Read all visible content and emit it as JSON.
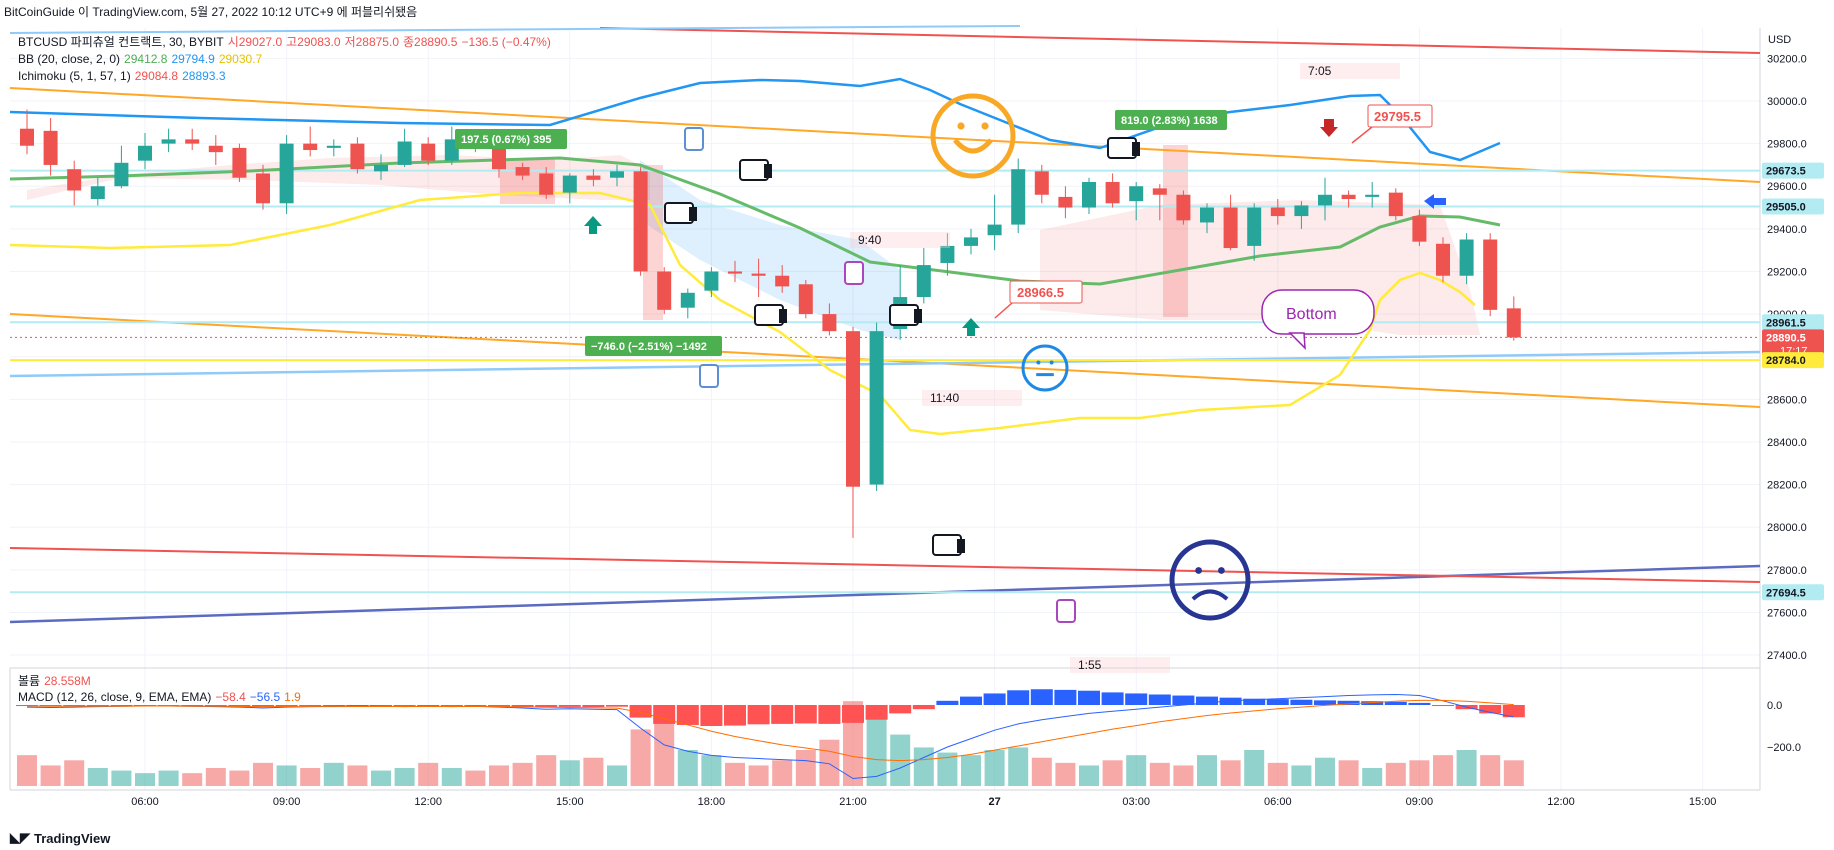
{
  "header": {
    "text": "BitCoinGuide 이 TradingView.com, 5월 27, 2022 10:12 UTC+9 에 퍼블리쉬됐음"
  },
  "legend": {
    "symbol": "BTCUSD 파피츄얼 컨트랙트, 30, BYBIT",
    "o_label": "시",
    "o": "29027.0",
    "h_label": "고",
    "h": "29083.0",
    "l_label": "저",
    "l": "28875.0",
    "c_label": "종",
    "c": "28890.5",
    "chg": "−136.5 (−0.47%)",
    "bb_label": "BB (20, close, 2, 0)",
    "bb_basis": "29412.8",
    "bb_upper": "29794.9",
    "bb_lower": "29030.7",
    "ichimoku_label": "Ichimoku (5, 1, 57, 1)",
    "ich_a": "29084.8",
    "ich_b": "28893.3",
    "volume_label": "볼륨",
    "volume": "28.558M",
    "macd_label": "MACD (12, 26, close, 9, EMA, EMA)",
    "macd_hist": "−58.4",
    "macd_line": "−56.5",
    "macd_signal": "1.9"
  },
  "currency": "USD",
  "price_axis": {
    "ticks": [
      "30200.0",
      "30000.0",
      "29800.0",
      "29600.0",
      "29400.0",
      "29200.0",
      "29000.0",
      "28800.0",
      "28600.0",
      "28400.0",
      "28200.0",
      "28000.0",
      "27800.0",
      "27600.0",
      "27400.0"
    ],
    "badges": [
      {
        "label": "29673.5",
        "value": 29673.5,
        "bg": "#b2ebf2",
        "fg": "#131722"
      },
      {
        "label": "29505.0",
        "value": 29505.0,
        "bg": "#b2ebf2",
        "fg": "#131722"
      },
      {
        "label": "28961.5",
        "value": 28961.5,
        "bg": "#b2ebf2",
        "fg": "#131722"
      },
      {
        "label": "28890.5",
        "sub": "17:17",
        "value": 28890.5,
        "bg": "#ef5350",
        "fg": "#ffffff"
      },
      {
        "label": "28784.0",
        "value": 28784.0,
        "bg": "#ffeb3b",
        "fg": "#131722"
      },
      {
        "label": "27694.5",
        "value": 27694.5,
        "bg": "#b2ebf2",
        "fg": "#131722"
      }
    ]
  },
  "macd_axis": {
    "ticks": [
      {
        "label": "0.0",
        "value": 0
      },
      {
        "label": "−200.0",
        "value": -200
      }
    ]
  },
  "time_axis": [
    {
      "label": "06:00",
      "bar": 5
    },
    {
      "label": "09:00",
      "bar": 11
    },
    {
      "label": "12:00",
      "bar": 17
    },
    {
      "label": "15:00",
      "bar": 23
    },
    {
      "label": "18:00",
      "bar": 29
    },
    {
      "label": "21:00",
      "bar": 35
    },
    {
      "label": "27",
      "bar": 41,
      "bold": true
    },
    {
      "label": "03:00",
      "bar": 47
    },
    {
      "label": "06:00",
      "bar": 53
    },
    {
      "label": "09:00",
      "bar": 59
    },
    {
      "label": "12:00",
      "bar": 65
    },
    {
      "label": "15:00",
      "bar": 71
    }
  ],
  "annotations": {
    "measure_up_1": "197.5 (0.67%) 395",
    "measure_down": "−746.0 (−2.51%) −1492",
    "measure_up_2": "819.0 (2.83%) 1638",
    "price_tag_1": "29795.5",
    "price_tag_2": "28966.5",
    "callout": "Bottom",
    "time_1": "7:05",
    "time_2": "9:40",
    "time_3": "11:40",
    "time_4": "1:55"
  },
  "footer": {
    "brand": "TradingView"
  },
  "chart_data": {
    "type": "candlestick",
    "interval": "30",
    "symbol": "BTCUSD",
    "ylim": [
      27300,
      30250
    ],
    "candles": [
      {
        "o": 29870,
        "h": 29960,
        "l": 29750,
        "c": 29790
      },
      {
        "o": 29860,
        "h": 29920,
        "l": 29650,
        "c": 29700
      },
      {
        "o": 29680,
        "h": 29720,
        "l": 29510,
        "c": 29580
      },
      {
        "o": 29540,
        "h": 29640,
        "l": 29510,
        "c": 29600
      },
      {
        "o": 29600,
        "h": 29790,
        "l": 29590,
        "c": 29710
      },
      {
        "o": 29720,
        "h": 29850,
        "l": 29680,
        "c": 29790
      },
      {
        "o": 29800,
        "h": 29870,
        "l": 29760,
        "c": 29820
      },
      {
        "o": 29820,
        "h": 29870,
        "l": 29770,
        "c": 29800
      },
      {
        "o": 29790,
        "h": 29840,
        "l": 29700,
        "c": 29760
      },
      {
        "o": 29780,
        "h": 29800,
        "l": 29620,
        "c": 29640
      },
      {
        "o": 29660,
        "h": 29700,
        "l": 29490,
        "c": 29520
      },
      {
        "o": 29520,
        "h": 29840,
        "l": 29470,
        "c": 29800
      },
      {
        "o": 29800,
        "h": 29880,
        "l": 29740,
        "c": 29770
      },
      {
        "o": 29780,
        "h": 29820,
        "l": 29740,
        "c": 29790
      },
      {
        "o": 29800,
        "h": 29830,
        "l": 29660,
        "c": 29680
      },
      {
        "o": 29670,
        "h": 29750,
        "l": 29630,
        "c": 29700
      },
      {
        "o": 29700,
        "h": 29870,
        "l": 29690,
        "c": 29810
      },
      {
        "o": 29800,
        "h": 29830,
        "l": 29700,
        "c": 29720
      },
      {
        "o": 29720,
        "h": 29880,
        "l": 29700,
        "c": 29820
      },
      {
        "o": 29830,
        "h": 29860,
        "l": 29760,
        "c": 29790
      },
      {
        "o": 29780,
        "h": 29820,
        "l": 29640,
        "c": 29680
      },
      {
        "o": 29690,
        "h": 29710,
        "l": 29630,
        "c": 29650
      },
      {
        "o": 29660,
        "h": 29690,
        "l": 29540,
        "c": 29560
      },
      {
        "o": 29570,
        "h": 29660,
        "l": 29520,
        "c": 29650
      },
      {
        "o": 29650,
        "h": 29680,
        "l": 29600,
        "c": 29630
      },
      {
        "o": 29640,
        "h": 29700,
        "l": 29600,
        "c": 29670
      },
      {
        "o": 29670,
        "h": 29690,
        "l": 29180,
        "c": 29200
      },
      {
        "o": 29200,
        "h": 29220,
        "l": 29000,
        "c": 29020
      },
      {
        "o": 29030,
        "h": 29120,
        "l": 28980,
        "c": 29100
      },
      {
        "o": 29110,
        "h": 29220,
        "l": 29080,
        "c": 29200
      },
      {
        "o": 29200,
        "h": 29250,
        "l": 29150,
        "c": 29190
      },
      {
        "o": 29190,
        "h": 29260,
        "l": 29080,
        "c": 29180
      },
      {
        "o": 29180,
        "h": 29230,
        "l": 29100,
        "c": 29130
      },
      {
        "o": 29140,
        "h": 29160,
        "l": 28980,
        "c": 29000
      },
      {
        "o": 29000,
        "h": 29050,
        "l": 28900,
        "c": 28920
      },
      {
        "o": 28920,
        "h": 28940,
        "l": 27950,
        "c": 28190
      },
      {
        "o": 28200,
        "h": 28960,
        "l": 28170,
        "c": 28920
      },
      {
        "o": 28930,
        "h": 29230,
        "l": 28880,
        "c": 29080
      },
      {
        "o": 29080,
        "h": 29310,
        "l": 29050,
        "c": 29230
      },
      {
        "o": 29240,
        "h": 29380,
        "l": 29180,
        "c": 29320
      },
      {
        "o": 29320,
        "h": 29400,
        "l": 29280,
        "c": 29360
      },
      {
        "o": 29370,
        "h": 29560,
        "l": 29300,
        "c": 29420
      },
      {
        "o": 29420,
        "h": 29730,
        "l": 29380,
        "c": 29680
      },
      {
        "o": 29670,
        "h": 29700,
        "l": 29520,
        "c": 29560
      },
      {
        "o": 29550,
        "h": 29600,
        "l": 29450,
        "c": 29500
      },
      {
        "o": 29500,
        "h": 29640,
        "l": 29470,
        "c": 29620
      },
      {
        "o": 29620,
        "h": 29660,
        "l": 29500,
        "c": 29520
      },
      {
        "o": 29530,
        "h": 29620,
        "l": 29440,
        "c": 29600
      },
      {
        "o": 29590,
        "h": 29610,
        "l": 29440,
        "c": 29560
      },
      {
        "o": 29560,
        "h": 29580,
        "l": 29420,
        "c": 29440
      },
      {
        "o": 29430,
        "h": 29520,
        "l": 29380,
        "c": 29500
      },
      {
        "o": 29500,
        "h": 29560,
        "l": 29300,
        "c": 29310
      },
      {
        "o": 29320,
        "h": 29520,
        "l": 29250,
        "c": 29500
      },
      {
        "o": 29500,
        "h": 29540,
        "l": 29420,
        "c": 29460
      },
      {
        "o": 29460,
        "h": 29530,
        "l": 29400,
        "c": 29510
      },
      {
        "o": 29510,
        "h": 29640,
        "l": 29440,
        "c": 29560
      },
      {
        "o": 29560,
        "h": 29580,
        "l": 29500,
        "c": 29540
      },
      {
        "o": 29550,
        "h": 29620,
        "l": 29500,
        "c": 29560
      },
      {
        "o": 29570,
        "h": 29590,
        "l": 29440,
        "c": 29460
      },
      {
        "o": 29460,
        "h": 29490,
        "l": 29320,
        "c": 29340
      },
      {
        "o": 29330,
        "h": 29360,
        "l": 29150,
        "c": 29180
      },
      {
        "o": 29180,
        "h": 29380,
        "l": 29140,
        "c": 29350
      },
      {
        "o": 29350,
        "h": 29380,
        "l": 28990,
        "c": 29020
      },
      {
        "o": 29027,
        "h": 29083,
        "l": 28875,
        "c": 28890.5
      }
    ],
    "volume": [
      12,
      8,
      10,
      7,
      6,
      5,
      6,
      5,
      7,
      6,
      9,
      8,
      7,
      9,
      8,
      6,
      7,
      9,
      7,
      6,
      8,
      9,
      12,
      10,
      11,
      8,
      22,
      25,
      14,
      12,
      9,
      8,
      10,
      14,
      18,
      33,
      28,
      20,
      15,
      13,
      12,
      14,
      15,
      11,
      9,
      8,
      10,
      12,
      9,
      8,
      12,
      10,
      14,
      9,
      8,
      11,
      10,
      7,
      9,
      10,
      12,
      14,
      12,
      10
    ],
    "macd_hist": [
      -5,
      -6,
      -4,
      -5,
      -3,
      -4,
      -4,
      -5,
      -6,
      -8,
      -10,
      -7,
      -6,
      -5,
      -4,
      -6,
      -7,
      -5,
      -6,
      -5,
      -8,
      -10,
      -12,
      -9,
      -10,
      -8,
      -60,
      -90,
      -95,
      -100,
      -98,
      -92,
      -90,
      -88,
      -90,
      -85,
      -70,
      -40,
      -20,
      20,
      40,
      55,
      70,
      75,
      72,
      68,
      60,
      55,
      50,
      45,
      40,
      35,
      30,
      28,
      25,
      22,
      20,
      18,
      15,
      10,
      -5,
      -20,
      -40,
      -58.4
    ],
    "macd_line": [
      -10,
      -12,
      -10,
      -8,
      -6,
      -4,
      -5,
      -6,
      -8,
      -10,
      -14,
      -10,
      -8,
      -6,
      -4,
      -6,
      -8,
      -6,
      -8,
      -6,
      -10,
      -14,
      -20,
      -18,
      -20,
      -22,
      -110,
      -190,
      -220,
      -240,
      -250,
      -255,
      -260,
      -265,
      -280,
      -350,
      -340,
      -300,
      -250,
      -200,
      -160,
      -120,
      -90,
      -70,
      -55,
      -40,
      -30,
      -20,
      -10,
      0,
      10,
      20,
      25,
      30,
      35,
      40,
      45,
      48,
      50,
      45,
      20,
      -10,
      -35,
      -56.5
    ],
    "macd_signal": [
      -5,
      -6,
      -6,
      -6,
      -6,
      -5,
      -5,
      -6,
      -6,
      -7,
      -8,
      -8,
      -8,
      -8,
      -7,
      -7,
      -7,
      -7,
      -7,
      -7,
      -8,
      -9,
      -11,
      -12,
      -13,
      -15,
      -35,
      -65,
      -95,
      -125,
      -150,
      -170,
      -190,
      -205,
      -220,
      -245,
      -260,
      -265,
      -260,
      -250,
      -235,
      -215,
      -195,
      -175,
      -155,
      -135,
      -115,
      -98,
      -80,
      -65,
      -50,
      -38,
      -28,
      -18,
      -10,
      -2,
      5,
      12,
      18,
      22,
      22,
      18,
      10,
      1.9
    ]
  }
}
